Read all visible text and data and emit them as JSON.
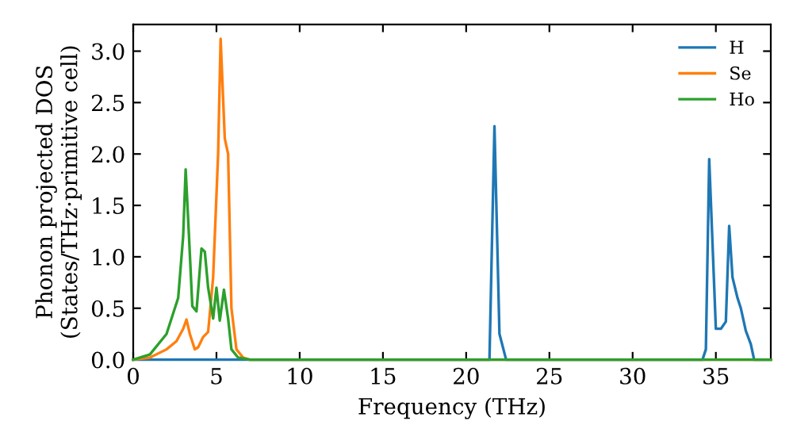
{
  "chart_data": {
    "type": "line",
    "xlabel": "Frequency (THz)",
    "ylabel": "Phonon projected DOS\n(States/THz·primitive cell)",
    "xlim": [
      0,
      38.3
    ],
    "ylim": [
      0,
      3.26
    ],
    "xticks": [
      0,
      5,
      10,
      15,
      20,
      25,
      30,
      35
    ],
    "yticks": [
      {
        "value": 0,
        "label": "0.0"
      },
      {
        "value": 0.5,
        "label": "0.5"
      },
      {
        "value": 1,
        "label": "1.0"
      },
      {
        "value": 1.5,
        "label": "1.5"
      },
      {
        "value": 2,
        "label": "2.0"
      },
      {
        "value": 2.5,
        "label": "2.5"
      },
      {
        "value": 3,
        "label": "3.0"
      }
    ],
    "legend": "top right",
    "grid": false,
    "series": [
      {
        "name": "H",
        "color": "#1f77b4",
        "x": [
          0,
          21.4,
          21.7,
          22.0,
          22.4,
          34.2,
          34.4,
          34.6,
          35.0,
          35.3,
          35.6,
          35.8,
          36.0,
          36.3,
          36.5,
          36.8,
          37.1,
          37.3,
          38.3
        ],
        "values": [
          0,
          0,
          2.27,
          0.25,
          0,
          0,
          0.1,
          1.95,
          0.3,
          0.3,
          0.37,
          1.3,
          0.8,
          0.6,
          0.5,
          0.28,
          0.15,
          0,
          0
        ]
      },
      {
        "name": "Se",
        "color": "#ff7f0e",
        "x": [
          0,
          1,
          2,
          2.6,
          3.0,
          3.2,
          3.4,
          3.7,
          3.9,
          4.2,
          4.5,
          4.8,
          5.1,
          5.25,
          5.5,
          5.7,
          5.9,
          6.2,
          6.6,
          7,
          38.3
        ],
        "values": [
          0,
          0.02,
          0.1,
          0.18,
          0.3,
          0.39,
          0.25,
          0.1,
          0.12,
          0.22,
          0.27,
          0.8,
          2.0,
          3.12,
          2.15,
          2.0,
          0.5,
          0.1,
          0.02,
          0,
          0
        ]
      },
      {
        "name": "Ho",
        "color": "#2ca02c",
        "x": [
          0,
          1,
          2,
          2.7,
          3.0,
          3.15,
          3.35,
          3.55,
          3.8,
          4.1,
          4.3,
          4.5,
          4.8,
          5.0,
          5.2,
          5.45,
          5.7,
          5.9,
          6.3,
          7,
          38.3
        ],
        "values": [
          0,
          0.05,
          0.25,
          0.6,
          1.2,
          1.85,
          1.2,
          0.52,
          0.47,
          1.08,
          1.05,
          0.7,
          0.4,
          0.7,
          0.38,
          0.68,
          0.4,
          0.1,
          0.02,
          0,
          0
        ]
      }
    ]
  }
}
